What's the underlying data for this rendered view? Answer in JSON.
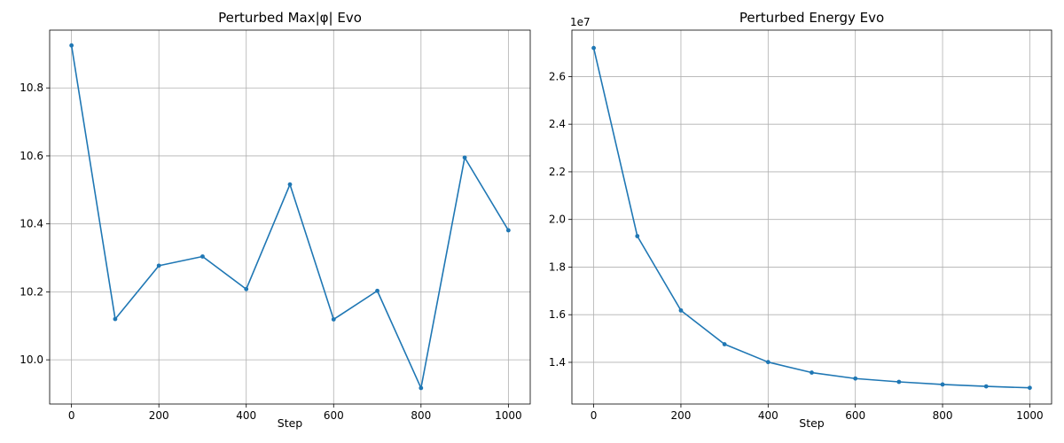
{
  "chart_data": [
    {
      "type": "line",
      "title": "Perturbed Max|φ| Evo",
      "xlabel": "Step",
      "ylabel": "",
      "x": [
        0,
        100,
        200,
        300,
        400,
        500,
        600,
        700,
        800,
        900,
        1000
      ],
      "series": [
        {
          "values": [
            10.925,
            10.12,
            10.277,
            10.304,
            10.208,
            10.516,
            10.119,
            10.203,
            9.917,
            10.595,
            10.381
          ]
        }
      ],
      "xlim": [
        -50,
        1050
      ],
      "ylim": [
        9.87,
        10.97
      ],
      "xticks": [
        0,
        200,
        400,
        600,
        800,
        1000
      ],
      "yticks": [
        10.0,
        10.2,
        10.4,
        10.6,
        10.8
      ],
      "ytick_labels": [
        "10.0",
        "10.2",
        "10.4",
        "10.6",
        "10.8"
      ],
      "grid": true,
      "color": "#1f77b4"
    },
    {
      "type": "line",
      "title": "Perturbed Energy Evo",
      "xlabel": "Step",
      "ylabel": "",
      "offset_label": "1e7",
      "x": [
        0,
        100,
        200,
        300,
        400,
        500,
        600,
        700,
        800,
        900,
        1000
      ],
      "series": [
        {
          "values": [
            27200000,
            19300000,
            16180000,
            14760000,
            14010000,
            13570000,
            13320000,
            13180000,
            13070000,
            12990000,
            12930000
          ]
        }
      ],
      "xlim": [
        -50,
        1050
      ],
      "ylim": [
        12250000,
        27950000
      ],
      "xticks": [
        0,
        200,
        400,
        600,
        800,
        1000
      ],
      "yticks": [
        14000000,
        16000000,
        18000000,
        20000000,
        22000000,
        24000000,
        26000000
      ],
      "ytick_labels": [
        "1.4",
        "1.6",
        "1.8",
        "2.0",
        "2.2",
        "2.4",
        "2.6"
      ],
      "grid": true,
      "color": "#1f77b4"
    }
  ]
}
